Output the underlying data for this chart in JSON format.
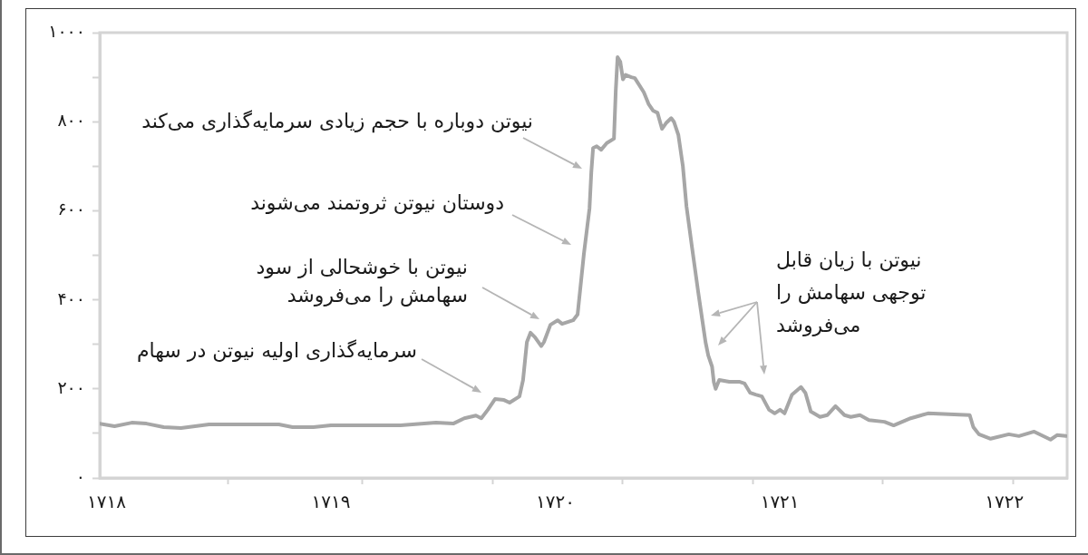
{
  "chart_data": {
    "type": "line",
    "x": [
      1717.97,
      1718.036,
      1718.113,
      1718.178,
      1718.255,
      1718.332,
      1718.457,
      1718.768,
      1718.829,
      1718.922,
      1719.0,
      1719.31,
      1719.468,
      1719.545,
      1719.594,
      1719.646,
      1719.67,
      1719.699,
      1719.731,
      1719.771,
      1719.796,
      1719.84,
      1719.856,
      1719.873,
      1719.889,
      1719.909,
      1719.937,
      1719.949,
      1719.978,
      1720.01,
      1720.03,
      1720.079,
      1720.099,
      1720.127,
      1720.152,
      1720.16,
      1720.168,
      1720.184,
      1720.204,
      1720.229,
      1720.261,
      1720.269,
      1720.277,
      1720.289,
      1720.301,
      1720.313,
      1720.338,
      1720.354,
      1720.394,
      1720.415,
      1720.435,
      1720.455,
      1720.475,
      1720.495,
      1720.516,
      1720.528,
      1720.548,
      1720.568,
      1720.584,
      1720.609,
      1720.637,
      1720.657,
      1720.669,
      1720.681,
      1720.698,
      1720.706,
      1720.714,
      1720.73,
      1720.775,
      1720.819,
      1720.843,
      1720.868,
      1720.892,
      1720.92,
      1720.952,
      1720.977,
      1721.001,
      1721.021,
      1721.054,
      1721.094,
      1721.114,
      1721.138,
      1721.179,
      1721.211,
      1721.248,
      1721.288,
      1721.316,
      1721.357,
      1721.397,
      1721.466,
      1721.507,
      1721.583,
      1721.66,
      1721.753,
      1721.846,
      1721.862,
      1721.887,
      1721.939,
      1722.02,
      1722.065,
      1722.133,
      1722.206,
      1722.235,
      1722.275
    ],
    "values": [
      122,
      116,
      124,
      122,
      114,
      112,
      120,
      120,
      114,
      114,
      118,
      118,
      124,
      122,
      134,
      140,
      134,
      153,
      177,
      175,
      169,
      183,
      220,
      305,
      326,
      316,
      296,
      305,
      344,
      354,
      346,
      354,
      367,
      503,
      605,
      686,
      741,
      745,
      737,
      752,
      762,
      870,
      945,
      935,
      895,
      905,
      900,
      898,
      866,
      840,
      825,
      820,
      784,
      798,
      808,
      800,
      770,
      700,
      610,
      517,
      415,
      346,
      305,
      275,
      250,
      215,
      200,
      220,
      216,
      216,
      212,
      191,
      187,
      183,
      153,
      145,
      153,
      145,
      187,
      204,
      191,
      149,
      137,
      141,
      161,
      141,
      137,
      141,
      130,
      126,
      118,
      134,
      145,
      143,
      141,
      114,
      98,
      88,
      98,
      94,
      104,
      86,
      96,
      94
    ],
    "color": "#a6a6a6",
    "xlim": [
      1717.97,
      1722.28
    ],
    "xticks": [
      {
        "value": 1718,
        "label": "۱۷۱۸"
      },
      {
        "value": 1718.54,
        "label": null
      },
      {
        "value": 1719,
        "label": "۱۷۱۹"
      },
      {
        "value": 1719.14,
        "label": null
      },
      {
        "value": 1719.72,
        "label": null
      },
      {
        "value": 1720,
        "label": "۱۷۲۰"
      },
      {
        "value": 1720.3,
        "label": null
      },
      {
        "value": 1720.88,
        "label": null
      },
      {
        "value": 1721,
        "label": "۱۷۲۱"
      },
      {
        "value": 1721.46,
        "label": null
      },
      {
        "value": 1722,
        "label": "۱۷۲۲"
      },
      {
        "value": 1722.04,
        "label": null
      }
    ],
    "ylim": [
      0,
      1000
    ],
    "yticks": [
      {
        "value": 0,
        "label": "۰"
      },
      {
        "value": 100,
        "label": null
      },
      {
        "value": 200,
        "label": "۲۰۰"
      },
      {
        "value": 300,
        "label": null
      },
      {
        "value": 400,
        "label": "۴۰۰"
      },
      {
        "value": 500,
        "label": null
      },
      {
        "value": 600,
        "label": "۶۰۰"
      },
      {
        "value": 700,
        "label": null
      },
      {
        "value": 800,
        "label": "۸۰۰"
      },
      {
        "value": 900,
        "label": null
      },
      {
        "value": 1000,
        "label": "۱۰۰۰"
      }
    ],
    "annotations": [
      "نیوتن دوباره با حجم زیادی سرمایه‌گذاری می‌کند",
      "دوستان نیوتن ثروتمند می‌شوند",
      "نیوتن با خوشحالی از سود\nسهامش را می‌فروشد",
      "سرمایه‌گذاری اولیه نیوتن در سهام",
      "نیوتن با زیان قابل\nتوجهی سهامش را\nمی‌فروشد"
    ]
  }
}
